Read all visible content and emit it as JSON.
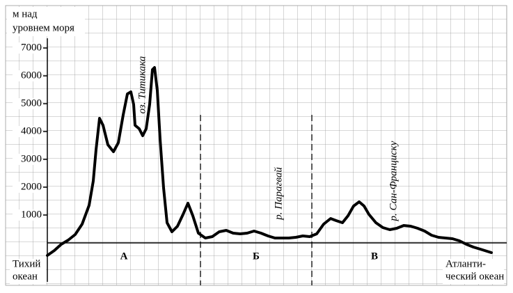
{
  "chart_data": {
    "type": "line",
    "y_axis_label": [
      "м над",
      "уровнем моря"
    ],
    "x": [
      0,
      10,
      20,
      30,
      40,
      50,
      60,
      66,
      70,
      75,
      80,
      87,
      95,
      102,
      109,
      115,
      120,
      124,
      126,
      132,
      137,
      142,
      147,
      151,
      154,
      158,
      162,
      167,
      172,
      179,
      187,
      195,
      202,
      209,
      217,
      227,
      237,
      247,
      257,
      267,
      277,
      287,
      297,
      307,
      317,
      327,
      337,
      347,
      357,
      367,
      377,
      387,
      397,
      407,
      415,
      424,
      432,
      440,
      448,
      455,
      462,
      472,
      482,
      492,
      502,
      512,
      522,
      532,
      542,
      552,
      562,
      572,
      582,
      592,
      602,
      612,
      622,
      638
    ],
    "values": [
      -450,
      -275,
      -50,
      100,
      300,
      675,
      1350,
      2225,
      3350,
      4475,
      4225,
      3525,
      3275,
      3600,
      4600,
      5350,
      5425,
      4975,
      4225,
      4100,
      3850,
      4100,
      4975,
      6225,
      6300,
      5475,
      3725,
      1975,
      725,
      400,
      600,
      1025,
      1425,
      975,
      350,
      175,
      225,
      400,
      450,
      350,
      325,
      350,
      425,
      350,
      250,
      175,
      175,
      175,
      200,
      250,
      225,
      325,
      675,
      875,
      800,
      725,
      975,
      1325,
      1475,
      1325,
      1025,
      725,
      550,
      475,
      525,
      625,
      600,
      525,
      425,
      275,
      200,
      175,
      150,
      75,
      -50,
      -150,
      -225,
      -350
    ],
    "color": "#000000",
    "xlim": [
      -60,
      660
    ],
    "ylim": [
      -1525,
      8525
    ],
    "yticks": [
      1000,
      2000,
      3000,
      4000,
      5000,
      6000,
      7000
    ],
    "regions": [
      "А",
      "Б",
      "В"
    ],
    "left_label": [
      "Тихий",
      "океан"
    ],
    "right_label": [
      "Атланти-",
      "ческий океан"
    ],
    "annotations": [
      "оз. Титикака",
      "р. Парагвай",
      "р. Сан-Франциску"
    ]
  }
}
